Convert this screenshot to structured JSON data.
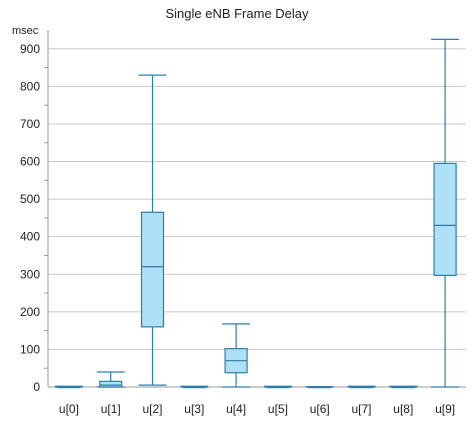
{
  "chart_data": {
    "type": "boxplot",
    "title": "Single eNB Frame Delay",
    "ylabel": "msec",
    "xlabel": "",
    "ylim": [
      0,
      950
    ],
    "yticks": [
      0,
      100,
      200,
      300,
      400,
      500,
      600,
      700,
      800,
      900
    ],
    "grid": true,
    "colors": {
      "box_fill": "#aee0f8",
      "box_stroke": "#2e7ea8",
      "grid": "#c8c8c8"
    },
    "categories": [
      "u[0]",
      "u[1]",
      "u[2]",
      "u[3]",
      "u[4]",
      "u[5]",
      "u[6]",
      "u[7]",
      "u[8]",
      "u[9]"
    ],
    "boxes": [
      {
        "min": 0,
        "q1": 0,
        "median": 0,
        "q3": 1,
        "max": 2
      },
      {
        "min": 0,
        "q1": 0,
        "median": 5,
        "q3": 15,
        "max": 40
      },
      {
        "min": 5,
        "q1": 160,
        "median": 320,
        "q3": 465,
        "max": 830
      },
      {
        "min": 0,
        "q1": 0,
        "median": 0,
        "q3": 1,
        "max": 2
      },
      {
        "min": 0,
        "q1": 38,
        "median": 70,
        "q3": 102,
        "max": 168
      },
      {
        "min": 0,
        "q1": 0,
        "median": 0,
        "q3": 1,
        "max": 2
      },
      {
        "min": 0,
        "q1": 0,
        "median": 0,
        "q3": 1,
        "max": 1
      },
      {
        "min": 0,
        "q1": 0,
        "median": 0,
        "q3": 1,
        "max": 2
      },
      {
        "min": 0,
        "q1": 0,
        "median": 0,
        "q3": 1,
        "max": 2
      },
      {
        "min": 0,
        "q1": 297,
        "median": 430,
        "q3": 595,
        "max": 925
      }
    ]
  }
}
